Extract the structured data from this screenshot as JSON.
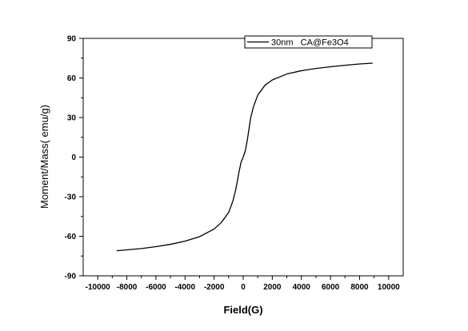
{
  "chart_data": {
    "type": "line",
    "title": "",
    "xlabel": "Field(G)",
    "ylabel": "Moment/Mass( emu/g)",
    "xlim": [
      -11000,
      11000
    ],
    "ylim": [
      -90,
      90
    ],
    "xticks": [
      -10000,
      -8000,
      -6000,
      -4000,
      -2000,
      0,
      2000,
      4000,
      6000,
      8000,
      10000
    ],
    "yticks": [
      -90,
      -60,
      -30,
      0,
      30,
      60,
      90
    ],
    "grid": false,
    "legend_position": "top-right",
    "series": [
      {
        "name": "30nm   CA@Fe3O4",
        "color": "#000000",
        "x": [
          -8700,
          -8000,
          -7000,
          -6000,
          -5000,
          -4000,
          -3000,
          -2000,
          -1500,
          -1000,
          -700,
          -500,
          -300,
          -150,
          0,
          150,
          300,
          500,
          700,
          1000,
          1500,
          2000,
          3000,
          4000,
          5000,
          6000,
          7000,
          8000,
          8900
        ],
        "y": [
          -71,
          -70.3,
          -69.3,
          -67.9,
          -66.1,
          -63.7,
          -60.3,
          -54.5,
          -49.5,
          -42,
          -33,
          -24,
          -12,
          -4,
          0,
          5,
          14,
          29,
          38,
          47,
          54.5,
          58.5,
          63,
          65.5,
          67.2,
          68.5,
          69.6,
          70.6,
          71.2
        ]
      }
    ]
  }
}
